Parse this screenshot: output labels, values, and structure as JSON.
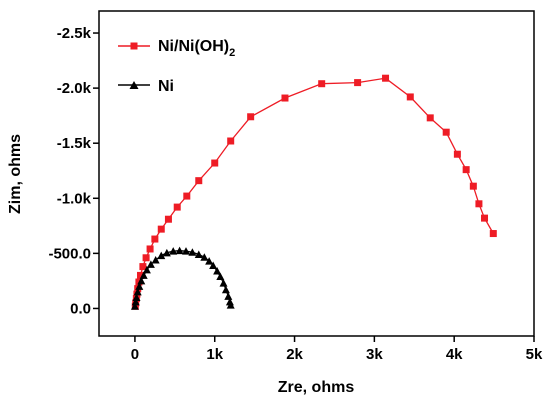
{
  "chart_data": {
    "type": "line",
    "xlabel": "Zre, ohms",
    "ylabel": "Zim, ohms",
    "xlim": [
      -450,
      5000
    ],
    "ylim": [
      250,
      -2700
    ],
    "x_ticks": [
      0,
      1000,
      2000,
      3000,
      4000,
      5000
    ],
    "x_tick_labels": [
      "0",
      "1k",
      "2k",
      "3k",
      "4k",
      "5k"
    ],
    "y_ticks": [
      0,
      -500,
      -1000,
      -1500,
      -2000,
      -2500
    ],
    "y_tick_labels": [
      "0.0",
      "-500.0",
      "-1.0k",
      "-1.5k",
      "-2.0k",
      "-2.5k"
    ],
    "legend_position": "top-left",
    "series": [
      {
        "name_parts": [
          "Ni/Ni(OH)",
          "2"
        ],
        "color": "#ee1c25",
        "marker": "square",
        "x": [
          5,
          10,
          18,
          25,
          35,
          50,
          70,
          100,
          140,
          190,
          250,
          330,
          420,
          530,
          650,
          800,
          1000,
          1200,
          1450,
          1880,
          2340,
          2790,
          3140,
          3450,
          3700,
          3900,
          4040,
          4150,
          4240,
          4310,
          4380,
          4490
        ],
        "y": [
          -20,
          -50,
          -90,
          -130,
          -180,
          -240,
          -300,
          -380,
          -460,
          -540,
          -630,
          -720,
          -810,
          -920,
          -1020,
          -1160,
          -1320,
          -1520,
          -1740,
          -1910,
          -2040,
          -2050,
          -2090,
          -1920,
          -1730,
          -1600,
          -1400,
          -1260,
          -1110,
          -950,
          -820,
          -680
        ]
      },
      {
        "name": "Ni",
        "color": "#000000",
        "marker": "triangle",
        "x": [
          0,
          10,
          20,
          35,
          55,
          80,
          110,
          150,
          200,
          260,
          330,
          400,
          480,
          560,
          640,
          720,
          800,
          870,
          930,
          980,
          1030,
          1070,
          1110,
          1140,
          1170,
          1190,
          1200
        ],
        "y": [
          -20,
          -60,
          -100,
          -150,
          -200,
          -250,
          -300,
          -350,
          -400,
          -440,
          -480,
          -505,
          -520,
          -525,
          -520,
          -510,
          -490,
          -465,
          -430,
          -390,
          -340,
          -290,
          -230,
          -170,
          -110,
          -60,
          -30
        ]
      }
    ]
  }
}
